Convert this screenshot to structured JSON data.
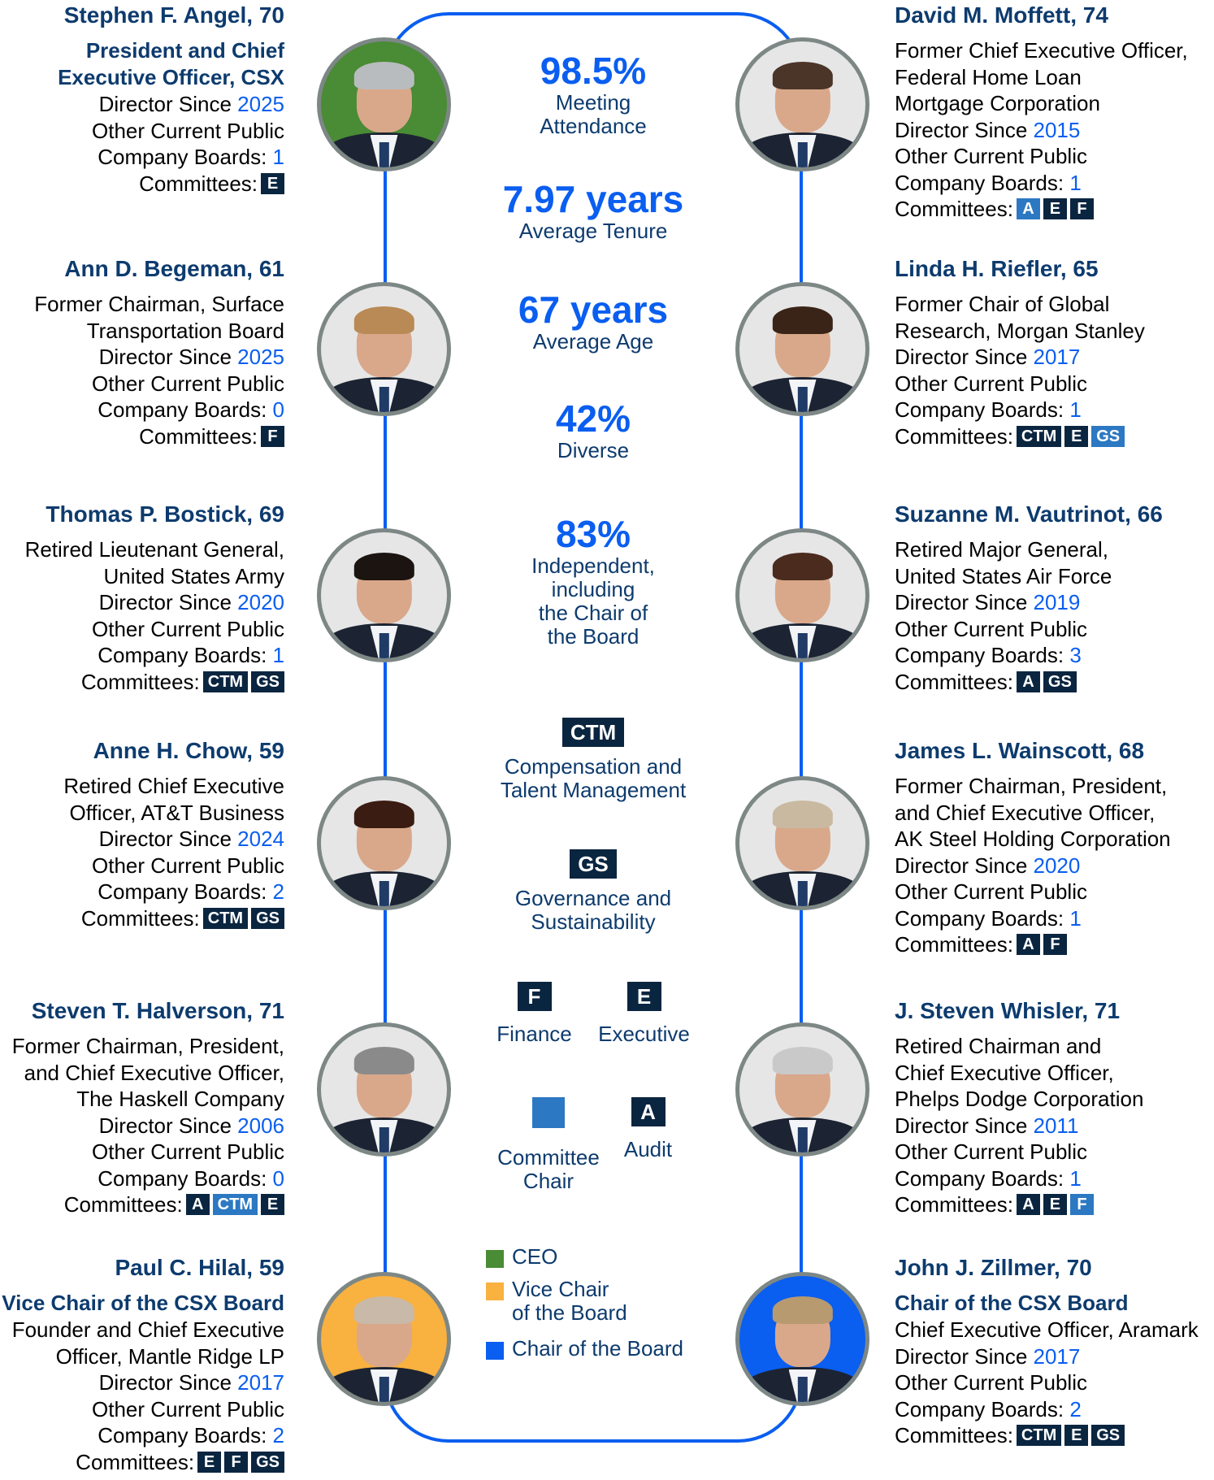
{
  "colors": {
    "frame": "#0a5ef0",
    "name_text": "#0d3b6e",
    "highlight": "#0a5ef0",
    "badge_member": "#0a2540",
    "badge_chair": "#2c78c2",
    "ceo": "#4a8b35",
    "vice_chair": "#f9b140",
    "chair": "#0a5ef0"
  },
  "labels": {
    "director_since": "Director Since ",
    "other_boards_1": "Other Current Public",
    "other_boards_2": "Company Boards: ",
    "committees": "Committees:"
  },
  "directors_left": [
    {
      "name": "Stephen F. Angel, 70",
      "role": [
        "President and Chief",
        "Executive Officer, CSX"
      ],
      "title": [],
      "since": "2025",
      "boards": "1",
      "committees": [
        {
          "code": "E",
          "chair": false
        }
      ],
      "photo_bg": "ceo"
    },
    {
      "name": "Ann D. Begeman, 61",
      "role": [],
      "title": [
        "Former Chairman, Surface",
        "Transportation Board"
      ],
      "since": "2025",
      "boards": "0",
      "committees": [
        {
          "code": "F",
          "chair": false
        }
      ],
      "photo_bg": "neutral"
    },
    {
      "name": "Thomas P. Bostick, 69",
      "role": [],
      "title": [
        "Retired Lieutenant General,",
        "United States Army"
      ],
      "since": "2020",
      "boards": "1",
      "committees": [
        {
          "code": "CTM",
          "chair": false
        },
        {
          "code": "GS",
          "chair": false
        }
      ],
      "photo_bg": "neutral"
    },
    {
      "name": "Anne H. Chow, 59",
      "role": [],
      "title": [
        "Retired Chief Executive",
        "Officer, AT&T Business"
      ],
      "since": "2024",
      "boards": "2",
      "committees": [
        {
          "code": "CTM",
          "chair": false
        },
        {
          "code": "GS",
          "chair": false
        }
      ],
      "photo_bg": "neutral"
    },
    {
      "name": "Steven T. Halverson, 71",
      "role": [],
      "title": [
        "Former Chairman, President,",
        "and Chief Executive Officer,",
        "The Haskell Company"
      ],
      "since": "2006",
      "boards": "0",
      "committees": [
        {
          "code": "A",
          "chair": false
        },
        {
          "code": "CTM",
          "chair": true
        },
        {
          "code": "E",
          "chair": false
        }
      ],
      "photo_bg": "neutral"
    },
    {
      "name": "Paul C. Hilal, 59",
      "role": [
        "Vice Chair of the CSX Board"
      ],
      "title": [
        "Founder and Chief Executive",
        "Officer, Mantle Ridge LP"
      ],
      "since": "2017",
      "boards": "2",
      "committees": [
        {
          "code": "E",
          "chair": false
        },
        {
          "code": "F",
          "chair": false
        },
        {
          "code": "GS",
          "chair": false
        }
      ],
      "photo_bg": "vice"
    }
  ],
  "directors_right": [
    {
      "name": "David M. Moffett, 74",
      "role": [],
      "title": [
        "Former Chief Executive Officer,",
        "Federal Home Loan",
        "Mortgage Corporation"
      ],
      "since": "2015",
      "boards": "1",
      "committees": [
        {
          "code": "A",
          "chair": true
        },
        {
          "code": "E",
          "chair": false
        },
        {
          "code": "F",
          "chair": false
        }
      ],
      "photo_bg": "neutral"
    },
    {
      "name": "Linda H. Riefler, 65",
      "role": [],
      "title": [
        "Former Chair of Global",
        "Research, Morgan Stanley"
      ],
      "since": "2017",
      "boards": "1",
      "committees": [
        {
          "code": "CTM",
          "chair": false
        },
        {
          "code": "E",
          "chair": false
        },
        {
          "code": "GS",
          "chair": true
        }
      ],
      "photo_bg": "neutral"
    },
    {
      "name": "Suzanne M. Vautrinot, 66",
      "role": [],
      "title": [
        "Retired Major General,",
        "United States Air Force"
      ],
      "since": "2019",
      "boards": "3",
      "committees": [
        {
          "code": "A",
          "chair": false
        },
        {
          "code": "GS",
          "chair": false
        }
      ],
      "photo_bg": "neutral"
    },
    {
      "name": "James L. Wainscott, 68",
      "role": [],
      "title": [
        "Former Chairman, President,",
        "and Chief Executive Officer,",
        "AK Steel Holding Corporation"
      ],
      "since": "2020",
      "boards": "1",
      "committees": [
        {
          "code": "A",
          "chair": false
        },
        {
          "code": "F",
          "chair": false
        }
      ],
      "photo_bg": "neutral"
    },
    {
      "name": "J. Steven Whisler, 71",
      "role": [],
      "title": [
        "Retired Chairman and",
        "Chief Executive Officer,",
        "Phelps Dodge Corporation"
      ],
      "since": "2011",
      "boards": "1",
      "committees": [
        {
          "code": "A",
          "chair": false
        },
        {
          "code": "E",
          "chair": false
        },
        {
          "code": "F",
          "chair": true
        }
      ],
      "photo_bg": "neutral"
    },
    {
      "name": "John J. Zillmer, 70",
      "role": [
        "Chair of the CSX Board"
      ],
      "title": [
        "Chief Executive Officer, Aramark"
      ],
      "since": "2017",
      "boards": "2",
      "committees": [
        {
          "code": "CTM",
          "chair": false
        },
        {
          "code": "E",
          "chair": false
        },
        {
          "code": "GS",
          "chair": false
        }
      ],
      "photo_bg": "chair"
    }
  ],
  "stats": [
    {
      "value": "98.5%",
      "label": [
        "Meeting",
        "Attendance"
      ]
    },
    {
      "value": "7.97 years",
      "label": [
        "Average Tenure"
      ]
    },
    {
      "value": "67 years",
      "label": [
        "Average Age"
      ]
    },
    {
      "value": "42%",
      "label": [
        "Diverse"
      ]
    },
    {
      "value": "83%",
      "label": [
        "Independent,",
        "including",
        "the Chair of",
        "the Board"
      ]
    }
  ],
  "committee_legend": {
    "ctm": {
      "code": "CTM",
      "label": [
        "Compensation and",
        "Talent Management"
      ]
    },
    "gs": {
      "code": "GS",
      "label": [
        "Governance and",
        "Sustainability"
      ]
    },
    "f": {
      "code": "F",
      "label": "Finance"
    },
    "e": {
      "code": "E",
      "label": "Executive"
    },
    "chair": {
      "label": [
        "Committee",
        "Chair"
      ]
    },
    "a": {
      "code": "A",
      "label": "Audit"
    }
  },
  "role_legend": [
    {
      "label": [
        "CEO"
      ],
      "color": "#4a8b35"
    },
    {
      "label": [
        "Vice Chair",
        "of the Board"
      ],
      "color": "#f9b140"
    },
    {
      "label": [
        "Chair of the Board"
      ],
      "color": "#0a5ef0"
    }
  ]
}
